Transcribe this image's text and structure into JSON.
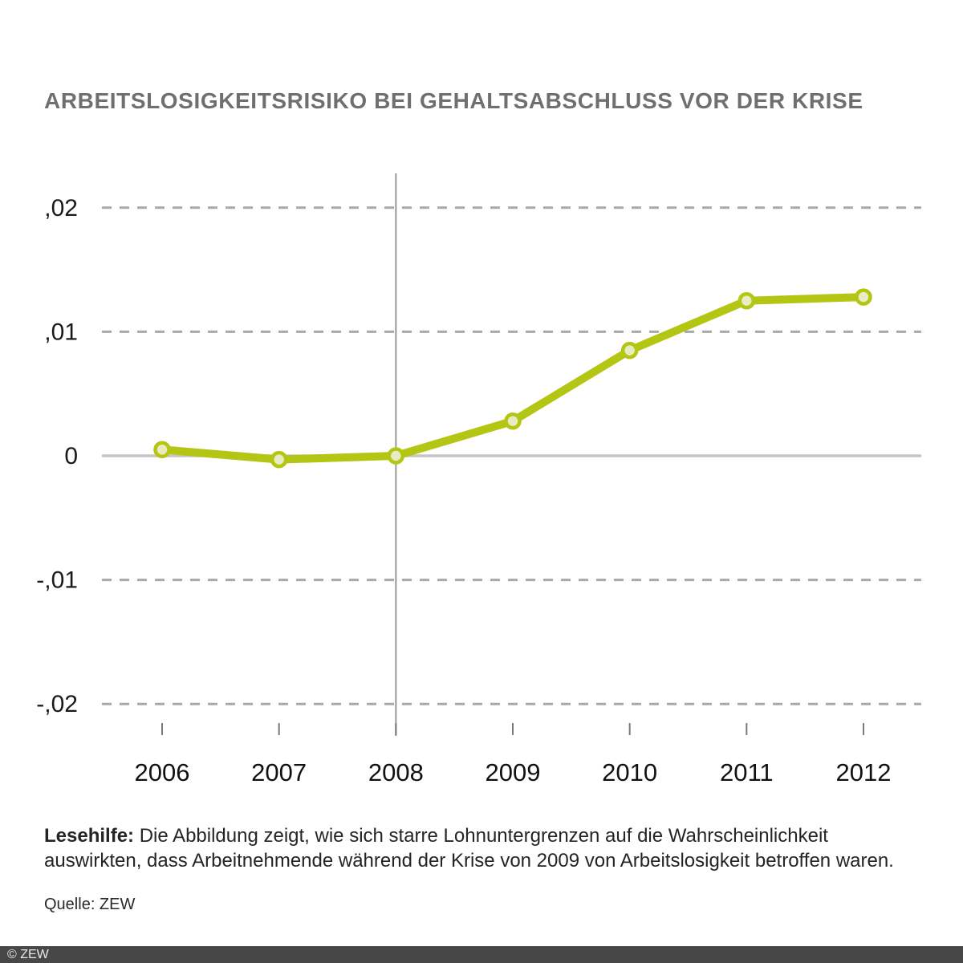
{
  "title": "ARBEITSLOSIGKEITSRISIKO BEI GEHALTSABSCHLUSS VOR DER KRISE",
  "chart_data": {
    "type": "line",
    "x": [
      2006,
      2007,
      2008,
      2009,
      2010,
      2011,
      2012
    ],
    "series": [
      {
        "name": "Arbeitslosigkeitsrisiko",
        "values": [
          0.0005,
          -0.0003,
          0.0,
          0.0028,
          0.0085,
          0.0125,
          0.0128
        ]
      }
    ],
    "y_ticks": [
      {
        "value": 0.02,
        "label": ",02"
      },
      {
        "value": 0.01,
        "label": ",01"
      },
      {
        "value": 0.0,
        "label": "0"
      },
      {
        "value": -0.01,
        "label": "-,01"
      },
      {
        "value": -0.02,
        "label": "-,02"
      }
    ],
    "ylim": [
      -0.023,
      0.023
    ],
    "grid": "horizontal dashed, solid zero line",
    "legend": "none",
    "reference_line_x": 2008,
    "colors": {
      "line": "#b4c613",
      "marker_fill": "#e9ecc1",
      "marker_stroke": "#b4c613",
      "grid_dashed": "#a8a8a8",
      "zero_line": "#c5c5c5",
      "vertical_line": "#999999",
      "axis_tick": "#7a7a7a",
      "tick_label": "#1a1a1a"
    }
  },
  "footer": {
    "lesehilfe_label": "Lesehilfe:",
    "lesehilfe_text": " Die Abbildung zeigt, wie sich starre Lohnuntergrenzen auf die Wahrscheinlichkeit auswirkten, dass Arbeitnehmende während der Krise von 2009 von Arbeitslosigkeit betroffen waren.",
    "source": "Quelle: ZEW"
  },
  "bottom_bar": {
    "copyright": "© ZEW"
  }
}
